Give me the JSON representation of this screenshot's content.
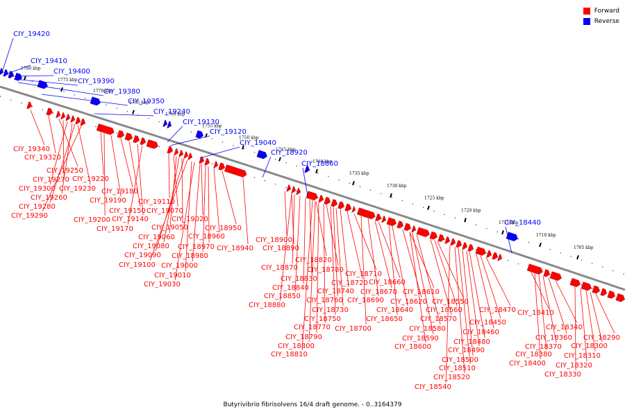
{
  "legend": [
    {
      "label": "Forward",
      "color": "#ff0000"
    },
    {
      "label": "Reverse",
      "color": "#0000ff"
    }
  ],
  "caption": "Butyrivibrio fibrisolvens 16/4 draft genome. - 0..3164379",
  "colors": {
    "forward": "#ff0000",
    "reverse": "#0000ff",
    "backbone": "#888888"
  },
  "ticks": [
    "1780 kbp",
    "1775 kbp",
    "1770 kbp",
    "1765 kbp",
    "1760 kbp",
    "1755 kbp",
    "1750 kbp",
    "1745 kbp",
    "1740 kbp",
    "1735 kbp",
    "1730 kbp",
    "1725 kbp",
    "1720 kbp",
    "1715 kbp",
    "1710 kbp",
    "1705 kbp"
  ],
  "reverse_genes": [
    "CIY_19420",
    "CIY_19410",
    "CIY_19400",
    "CIY_19390",
    "CIY_19380",
    "CIY_19350",
    "CIY_19240",
    "CIY_19130",
    "CIY_19120",
    "CIY_19040",
    "CIY_18920",
    "CIY_18860",
    "CIY_18440"
  ],
  "forward_genes": [
    "CIY_19340",
    "CIY_19320",
    "CIY_19250",
    "CIY_19270",
    "CIY_19220",
    "CIY_19300",
    "CIY_19230",
    "CIY_19260",
    "CIY_19280",
    "CIY_19290",
    "CIY_19180",
    "CIY_19190",
    "CIY_19150",
    "CIY_19110",
    "CIY_19070",
    "CIY_19200",
    "CIY_19140",
    "CIY_19170",
    "CIY_19020",
    "CIY_19050",
    "CIY_19060",
    "CIY_18950",
    "CIY_18960",
    "CIY_19080",
    "CIY_18970",
    "CIY_18940",
    "CIY_19090",
    "CIY_18980",
    "CIY_19100",
    "CIY_19000",
    "CIY_19010",
    "CIY_19030",
    "CIY_18900",
    "CIY_18890",
    "CIY_18820",
    "CIY_18870",
    "CIY_18780",
    "CIY_18830",
    "CIY_18710",
    "CIY_18720",
    "CIY_18840",
    "CIY_18660",
    "CIY_18740",
    "CIY_18670",
    "CIY_18850",
    "CIY_18760",
    "CIY_18690",
    "CIY_18610",
    "CIY_18880",
    "CIY_18620",
    "CIY_18730",
    "CIY_18550",
    "CIY_18640",
    "CIY_18560",
    "CIY_18470",
    "CIY_18750",
    "CIY_18650",
    "CIY_18570",
    "CIY_18410",
    "CIY_18450",
    "CIY_18700",
    "CIY_18770",
    "CIY_18580",
    "CIY_18460",
    "CIY_18340",
    "CIY_18290",
    "CIY_18790",
    "CIY_18590",
    "CIY_18480",
    "CIY_18360",
    "CIY_18300",
    "CIY_18800",
    "CIY_18600",
    "CIY_18370",
    "CIY_18490",
    "CIY_18810",
    "CIY_18380",
    "CIY_18310",
    "CIY_18500",
    "CIY_18400",
    "CIY_18320",
    "CIY_18510",
    "CIY_18330",
    "CIY_18520",
    "CIY_18540"
  ]
}
